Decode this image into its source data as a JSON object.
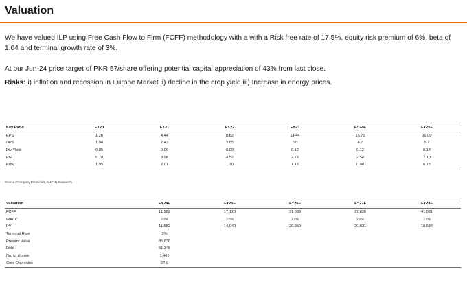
{
  "title": "Valuation",
  "paragraphs": {
    "p1": "We have valued ILP using Free Cash Flow to Firm (FCFF) methodology with a with a Risk free rate of 17.5%, equity risk premium of 6%, beta of 1.04 and terminal growth rate of 3%.",
    "p2": "At our Jun-24 price target of PKR 57/share offering potential capital appreciation of 43% from last close.",
    "risks_label": "Risks:",
    "risks_text": " i) inflation and recession in Europe Market ii) decline in the crop yield iii) Increase in energy prices."
  },
  "ratio_table": {
    "header": [
      "Key Ratio",
      "FY20",
      "FY21",
      "FY22",
      "FY23",
      "FY24E",
      "FY25F"
    ],
    "rows": [
      [
        "EPS",
        "1.28",
        "4.44",
        "8.82",
        "14.44",
        "15.72",
        "19.00"
      ],
      [
        "DPS",
        "1.94",
        "2.43",
        "3.85",
        "5.0",
        "4.7",
        "5.7"
      ],
      [
        "Div Yield",
        "0.05",
        "0.06",
        "0.09",
        "0.12",
        "0.12",
        "0.14"
      ],
      [
        "P/E",
        "31.11",
        "8.98",
        "4.52",
        "2.76",
        "2.54",
        "2.10"
      ],
      [
        "P/Bv",
        "1.95",
        "2.01",
        "1.70",
        "1.16",
        "0.98",
        "0.75"
      ]
    ]
  },
  "source": "Source: Company Financials, AHCML Research",
  "valuation_table": {
    "header": [
      "Valuation",
      "FY24E",
      "FY25F",
      "FY26F",
      "FY27F",
      "FY28F"
    ],
    "rows": [
      [
        "FCFF",
        "11,582",
        "17,128",
        "31,033",
        "37,826",
        "41,081"
      ],
      [
        "WACC",
        "22%",
        "22%",
        "22%",
        "22%",
        "22%"
      ],
      [
        "PV",
        "11,582",
        "14,040",
        "20,850",
        "20,831",
        "18,534"
      ],
      [
        "Terminal Rate",
        "3%",
        "",
        "",
        "",
        ""
      ],
      [
        "Present Value",
        "85,836",
        "",
        "",
        "",
        ""
      ],
      [
        "Debt",
        "51,348",
        "",
        "",
        "",
        ""
      ],
      [
        "No: of shares",
        "1,401",
        "",
        "",
        "",
        ""
      ],
      [
        "Core Ope value",
        "57.0",
        "",
        "",
        "",
        ""
      ]
    ]
  },
  "colors": {
    "accent_rule": "#e0701b",
    "table_rule": "#6f6f6f"
  }
}
